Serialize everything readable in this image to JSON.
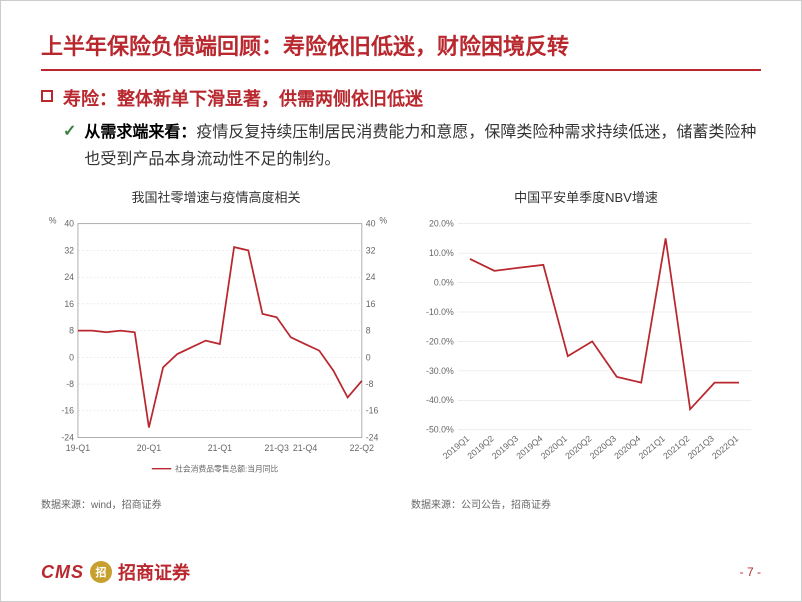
{
  "title": "上半年保险负债端回顾：寿险依旧低迷，财险困境反转",
  "subtitle": "寿险：整体新单下滑显著，供需两侧依旧低迷",
  "body_bold": "从需求端来看：",
  "body_text": "疫情反复持续压制居民消费能力和意愿，保障类险种需求持续低迷，储蓄类险种也受到产品本身流动性不足的制约。",
  "chart_left": {
    "title": "我国社零增速与疫情高度相关",
    "y_unit": "%",
    "y_min": -24,
    "y_max": 40,
    "y_ticks": [
      -24,
      -16,
      -8,
      0,
      8,
      16,
      24,
      32,
      40
    ],
    "x_labels": [
      "19-Q1",
      "",
      "",
      "",
      "20-Q1",
      "",
      "",
      "",
      "21-Q1",
      "",
      "21-Q3",
      "21-Q4",
      "",
      "22-Q2"
    ],
    "series_name": "社会消费品零售总额:当月同比",
    "data": [
      8,
      8,
      7.5,
      8,
      7.5,
      -21,
      -3,
      1,
      3,
      5,
      4,
      33,
      32,
      13,
      12,
      6,
      4,
      2,
      -4,
      -12,
      -7
    ],
    "line_color": "#b8282e",
    "grid_color": "#d8d8d8",
    "source": "数据来源：wind，招商证券"
  },
  "chart_right": {
    "title": "中国平安单季度NBV增速",
    "y_min": -50,
    "y_max": 20,
    "y_ticks": [
      "-50.0%",
      "-40.0%",
      "-30.0%",
      "-20.0%",
      "-10.0%",
      "0.0%",
      "10.0%",
      "20.0%"
    ],
    "y_vals": [
      -50,
      -40,
      -30,
      -20,
      -10,
      0,
      10,
      20
    ],
    "x_labels": [
      "2019Q1",
      "2019Q2",
      "2019Q3",
      "2019Q4",
      "2020Q1",
      "2020Q2",
      "2020Q3",
      "2020Q4",
      "2021Q1",
      "2021Q2",
      "2021Q3",
      "2022Q1"
    ],
    "data": [
      8,
      4,
      5,
      6,
      -25,
      -20,
      -32,
      -34,
      15,
      -43,
      -34,
      -34
    ],
    "line_color": "#b8282e",
    "grid_color": "#e0e0e0",
    "source": "数据来源：公司公告，招商证券"
  },
  "footer": {
    "cms": "CMS",
    "coin": "招",
    "cn": "招商证券",
    "page": "- 7 -"
  }
}
